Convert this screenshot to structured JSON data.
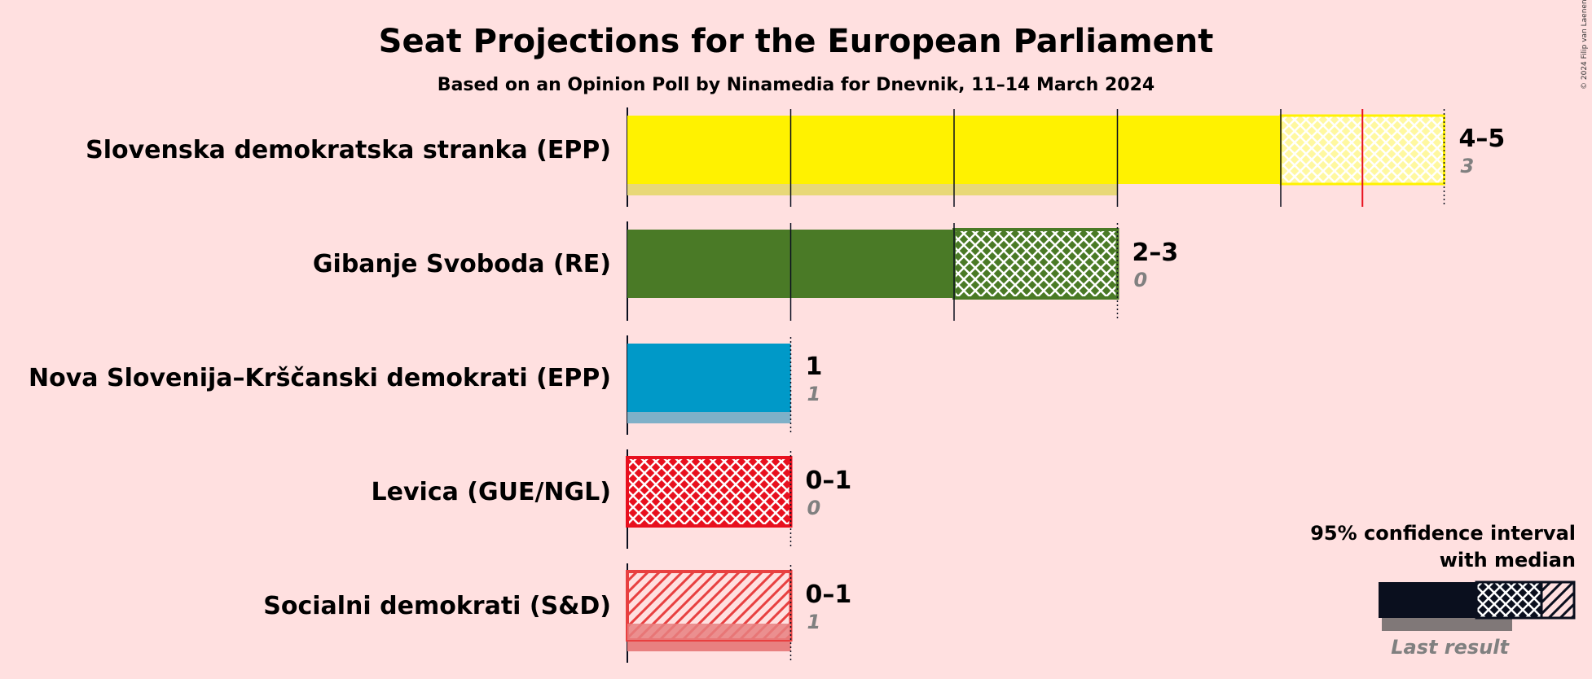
{
  "chart_data": {
    "type": "bar",
    "title": "Seat Projections for the European Parliament",
    "subtitle": "Based on an Opinion Poll by Ninamedia for Dnevnik, 11–14 March 2024",
    "copyright": "© 2024 Filip van Laenen",
    "xlim": [
      0,
      5
    ],
    "series": [
      {
        "name": "Slovenska demokratska stranka (EPP)",
        "low": 4,
        "median": 4.5,
        "high": 5,
        "last_result": 3,
        "range_label": "4–5",
        "last_label": "3",
        "color": "#fff200",
        "last_color": "#e8d878"
      },
      {
        "name": "Gibanje Svoboda (RE)",
        "low": 2,
        "median": 2,
        "high": 3,
        "last_result": 0,
        "range_label": "2–3",
        "last_label": "0",
        "color": "#4a7a26",
        "last_color": null
      },
      {
        "name": "Nova Slovenija–Krščanski demokrati (EPP)",
        "low": 1,
        "median": 1,
        "high": 1,
        "last_result": 1,
        "range_label": "1",
        "last_label": "1",
        "color": "#0099c8",
        "last_color": "#7fb0c8"
      },
      {
        "name": "Levica (GUE/NGL)",
        "low": 0,
        "median": 0,
        "high": 1,
        "last_result": 0,
        "range_label": "0–1",
        "last_label": "0",
        "color": "#e8101e",
        "last_color": null
      },
      {
        "name": "Socialni demokrati (S&D)",
        "low": 0,
        "median": 0,
        "high": 1,
        "last_result": 1,
        "range_label": "0–1",
        "last_label": "1",
        "color": "#e84040",
        "last_color": "#e88080"
      }
    ],
    "median_marker_color": "#e8101e",
    "legend": {
      "line1": "95% confidence interval",
      "line2": "with median",
      "last_result": "Last result",
      "dark_color": "#0a0f1e",
      "last_color": "#807878",
      "placement": "bottom-right"
    }
  }
}
